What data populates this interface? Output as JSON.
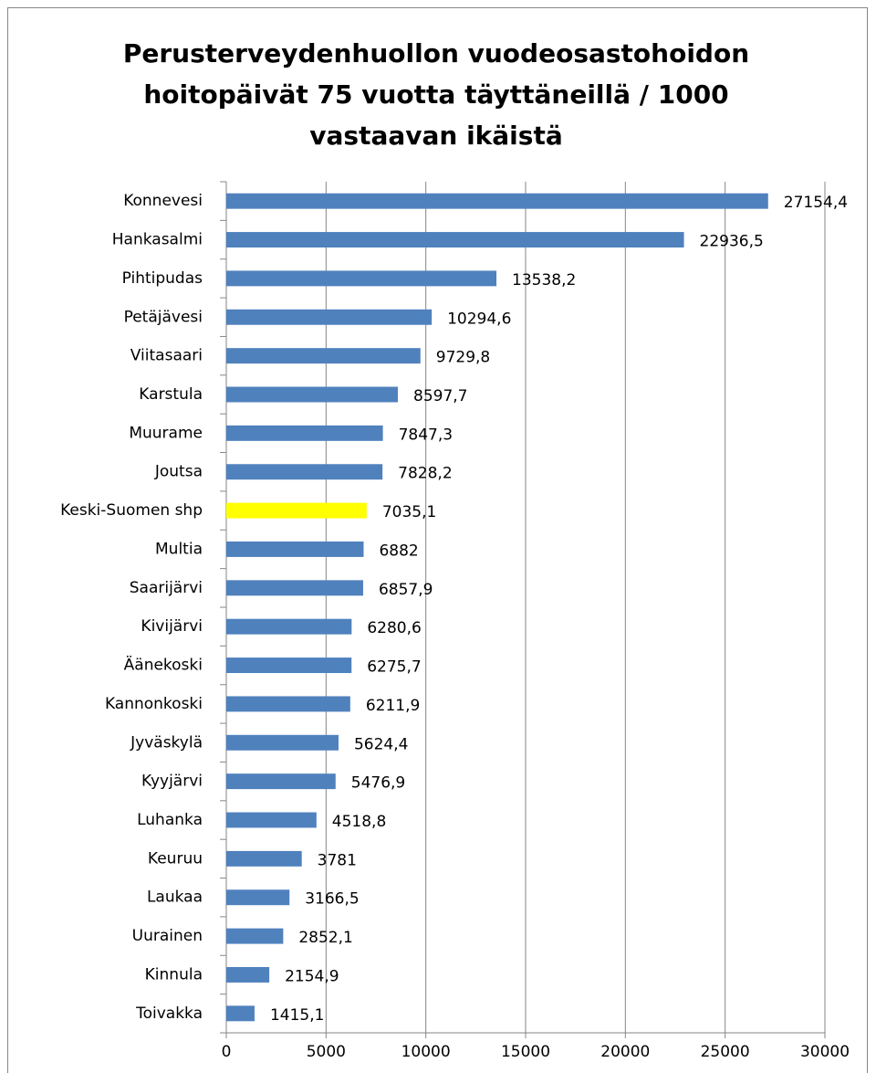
{
  "chart_data": {
    "type": "bar",
    "orientation": "horizontal",
    "title": [
      "Perusterveydenhuollon vuodeosastohoidon",
      "hoitopäivät 75 vuotta täyttäneillä / 1000",
      "vastaavan ikäistä"
    ],
    "categories": [
      "Konnevesi",
      "Hankasalmi",
      "Pihtipudas",
      "Petäjävesi",
      "Viitasaari",
      "Karstula",
      "Muurame",
      "Joutsa",
      "Keski-Suomen shp",
      "Multia",
      "Saarijärvi",
      "Kivijärvi",
      "Äänekoski",
      "Kannonkoski",
      "Jyväskylä",
      "Kyyjärvi",
      "Luhanka",
      "Keuruu",
      "Laukaa",
      "Uurainen",
      "Kinnula",
      "Toivakka"
    ],
    "values": [
      27154.4,
      22936.5,
      13538.2,
      10294.6,
      9729.8,
      8597.7,
      7847.3,
      7828.2,
      7035.1,
      6882,
      6857.9,
      6280.6,
      6275.7,
      6211.9,
      5624.4,
      5476.9,
      4518.8,
      3781,
      3166.5,
      2852.1,
      2154.9,
      1415.1
    ],
    "value_labels": [
      "27154,4",
      "22936,5",
      "13538,2",
      "10294,6",
      "9729,8",
      "8597,7",
      "7847,3",
      "7828,2",
      "7035,1",
      "6882",
      "6857,9",
      "6280,6",
      "6275,7",
      "6211,9",
      "5624,4",
      "5476,9",
      "4518,8",
      "3781",
      "3166,5",
      "2852,1",
      "2154,9",
      "1415,1"
    ],
    "colors": [
      "#4f81bd",
      "#4f81bd",
      "#4f81bd",
      "#4f81bd",
      "#4f81bd",
      "#4f81bd",
      "#4f81bd",
      "#4f81bd",
      "#ffff00",
      "#4f81bd",
      "#4f81bd",
      "#4f81bd",
      "#4f81bd",
      "#4f81bd",
      "#4f81bd",
      "#4f81bd",
      "#4f81bd",
      "#4f81bd",
      "#4f81bd",
      "#4f81bd",
      "#4f81bd",
      "#4f81bd"
    ],
    "xlim": [
      0,
      30000
    ],
    "xticks": [
      0,
      5000,
      10000,
      15000,
      20000,
      25000,
      30000
    ],
    "grid": true
  }
}
